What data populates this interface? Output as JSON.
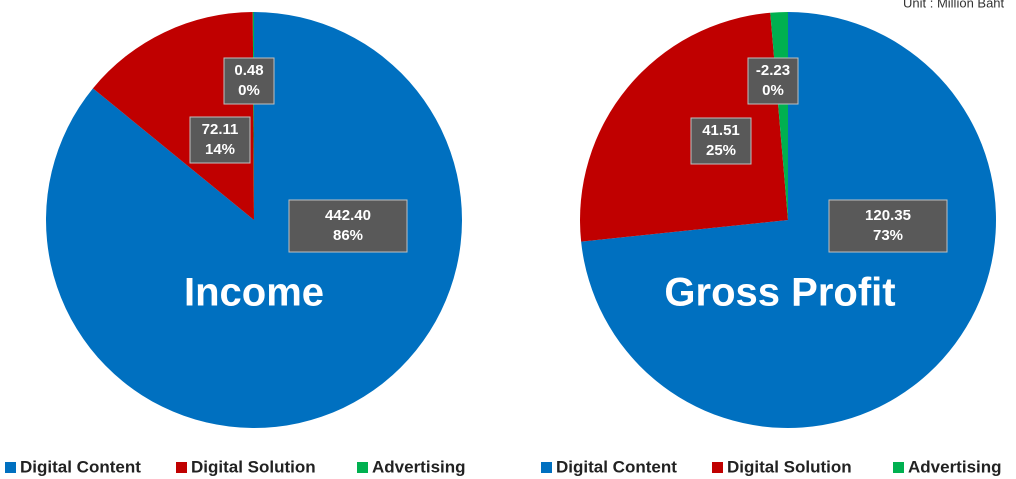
{
  "unit": "Unit : Million Baht",
  "chart_data": [
    {
      "type": "pie",
      "title": "Income",
      "categories": [
        "Digital Content",
        "Digital Solution",
        "Advertising"
      ],
      "colors": [
        "#0070c0",
        "#c00000",
        "#00b050"
      ],
      "values": [
        442.4,
        72.11,
        0.48
      ],
      "value_labels": [
        "442.40",
        "72.11",
        "0.48"
      ],
      "percents": [
        86,
        14,
        0
      ],
      "percent_labels": [
        "86%",
        "14%",
        "0%"
      ]
    },
    {
      "type": "pie",
      "title": "Gross Profit",
      "categories": [
        "Digital Content",
        "Digital Solution",
        "Advertising"
      ],
      "colors": [
        "#0070c0",
        "#c00000",
        "#00b050"
      ],
      "values": [
        120.35,
        41.51,
        -2.23
      ],
      "value_labels": [
        "120.35",
        "41.51",
        "-2.23"
      ],
      "percents": [
        73,
        25,
        0
      ],
      "percent_labels": [
        "73%",
        "25%",
        "0%"
      ]
    }
  ]
}
